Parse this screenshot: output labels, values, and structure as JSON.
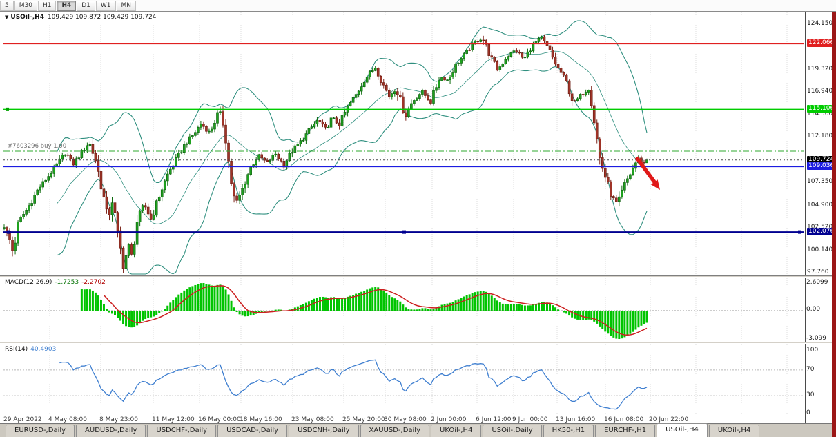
{
  "toolbar": {
    "periods": [
      "5",
      "M30",
      "H1",
      "H4",
      "D1",
      "W1",
      "MN"
    ],
    "active": "H4"
  },
  "chart": {
    "symbol_label": "USOil-,H4",
    "ohlc": "109.429 109.872 109.429 109.724",
    "buy_label": "#7603296 buy 1.00",
    "axis_labels": [
      {
        "text": "124.150",
        "price": 124.15,
        "style": "plain"
      },
      {
        "text": "119.320",
        "price": 119.32,
        "style": "plain"
      },
      {
        "text": "116.940",
        "price": 116.94,
        "style": "plain"
      },
      {
        "text": "114.560",
        "price": 114.56,
        "style": "plain"
      },
      {
        "text": "112.180",
        "price": 112.18,
        "style": "plain"
      },
      {
        "text": "107.350",
        "price": 107.35,
        "style": "plain"
      },
      {
        "text": "104.900",
        "price": 104.9,
        "style": "plain"
      },
      {
        "text": "102.520",
        "price": 102.52,
        "style": "plain"
      },
      {
        "text": "100.140",
        "price": 100.14,
        "style": "plain"
      },
      {
        "text": "97.760",
        "price": 97.76,
        "style": "plain"
      },
      {
        "text": "122.066",
        "price": 122.066,
        "style": "red"
      },
      {
        "text": "115.106",
        "price": 115.106,
        "style": "green"
      },
      {
        "text": "109.724",
        "price": 109.724,
        "style": "black"
      },
      {
        "text": "109.036",
        "price": 109.036,
        "style": "blue"
      },
      {
        "text": "102.076",
        "price": 102.076,
        "style": "navy"
      }
    ]
  },
  "macd": {
    "title": "MACD(12,26,9)",
    "value_main": "-1.7253",
    "value_signal": "-2.2702",
    "axis": [
      "2.6099",
      "0.00",
      "-3.099"
    ]
  },
  "rsi": {
    "title": "RSI(14)",
    "value": "40.4903",
    "axis": [
      "100",
      "70",
      "30",
      "0"
    ]
  },
  "time_axis": [
    "29 Apr 2022",
    "4 May 08:00",
    "8 May 23:00",
    "11 May 12:00",
    "16 May 00:00",
    "18 May 16:00",
    "23 May 08:00",
    "25 May 20:00",
    "30 May 08:00",
    "2 Jun 00:00",
    "6 Jun 12:00",
    "9 Jun 00:00",
    "13 Jun 16:00",
    "16 Jun 08:00",
    "20 Jun 22:00"
  ],
  "tabs": {
    "items": [
      "EURUSD-,Daily",
      "AUDUSD-,Daily",
      "USDCHF-,Daily",
      "USDCAD-,Daily",
      "USDCNH-,Daily",
      "XAUUSD-,Daily",
      "UKOil-,H4",
      "USOil-,Daily",
      "HK50-,H1",
      "EURCHF-,H1",
      "USOil-,H4",
      "UKOil-,H4"
    ],
    "active_index": 10
  },
  "chart_data": {
    "type": "candlestick",
    "symbol": "USOil-,H4",
    "current_ohlc": {
      "open": 109.429,
      "high": 109.872,
      "low": 109.429,
      "close": 109.724
    },
    "ylim": [
      97.76,
      124.15
    ],
    "y_axis_ticks": [
      124.15,
      119.32,
      116.94,
      114.56,
      112.18,
      107.35,
      104.9,
      102.52,
      100.14,
      97.76
    ],
    "x_labels": [
      "29 Apr 2022",
      "4 May 08:00",
      "8 May 23:00",
      "11 May 12:00",
      "16 May 00:00",
      "18 May 16:00",
      "23 May 08:00",
      "25 May 20:00",
      "30 May 08:00",
      "2 Jun 00:00",
      "6 Jun 12:00",
      "9 Jun 00:00",
      "13 Jun 16:00",
      "16 Jun 08:00",
      "20 Jun 22:00"
    ],
    "horizontal_lines": [
      {
        "price": 122.066,
        "color": "#e02020",
        "style": "solid"
      },
      {
        "price": 115.106,
        "color": "#00cc00",
        "style": "solid"
      },
      {
        "price": 110.66,
        "color": "#2faa2f",
        "style": "dashdot",
        "note": "open buy order line"
      },
      {
        "price": 109.724,
        "color": "#444444",
        "style": "dotted",
        "note": "current price"
      },
      {
        "price": 109.036,
        "color": "#1c1ce0",
        "style": "solid"
      },
      {
        "price": 102.076,
        "color": "#000090",
        "style": "solid"
      }
    ],
    "indicators": [
      {
        "name": "Bollinger Bands",
        "period": 20,
        "deviation": 2,
        "color": "#2f8f7f"
      },
      {
        "name": "MACD",
        "params": [
          12,
          26,
          9
        ],
        "current_values": [
          -1.7253,
          -2.2702
        ],
        "scale_range": [
          -3.099,
          2.6099
        ],
        "histogram_color": "#00c400",
        "signal_color": "#cc2020"
      },
      {
        "name": "RSI",
        "period": 14,
        "current_value": 40.4903,
        "levels": [
          30,
          70
        ],
        "line_color": "#3f7fd0"
      }
    ],
    "annotations": [
      {
        "type": "arrow",
        "color": "#e01818",
        "direction": "down-right",
        "near_price": 110.0
      },
      {
        "type": "order_line",
        "label": "#7603296 buy 1.00",
        "price": 110.66
      }
    ],
    "price_path_keyframes": [
      [
        6,
        102.8
      ],
      [
        14,
        101.2
      ],
      [
        19,
        99.9
      ],
      [
        27,
        103.2
      ],
      [
        40,
        104.6
      ],
      [
        55,
        106.6
      ],
      [
        70,
        108.0
      ],
      [
        84,
        109.4
      ],
      [
        95,
        110.6
      ],
      [
        105,
        109.2
      ],
      [
        117,
        110.4
      ],
      [
        129,
        111.6
      ],
      [
        139,
        109.6
      ],
      [
        149,
        106.2
      ],
      [
        156,
        103.4
      ],
      [
        163,
        105.6
      ],
      [
        171,
        101.6
      ],
      [
        179,
        98.5
      ],
      [
        186,
        100.6
      ],
      [
        191,
        99.4
      ],
      [
        199,
        103.4
      ],
      [
        209,
        105.0
      ],
      [
        219,
        103.4
      ],
      [
        231,
        106.0
      ],
      [
        244,
        108.4
      ],
      [
        257,
        110.0
      ],
      [
        268,
        111.4
      ],
      [
        280,
        112.4
      ],
      [
        291,
        113.6
      ],
      [
        304,
        112.6
      ],
      [
        317,
        114.9
      ],
      [
        325,
        113.2
      ],
      [
        334,
        107.8
      ],
      [
        341,
        104.9
      ],
      [
        351,
        106.6
      ],
      [
        362,
        108.8
      ],
      [
        374,
        110.2
      ],
      [
        387,
        109.4
      ],
      [
        399,
        110.4
      ],
      [
        411,
        109.2
      ],
      [
        424,
        110.8
      ],
      [
        437,
        111.8
      ],
      [
        449,
        113.0
      ],
      [
        461,
        114.0
      ],
      [
        471,
        112.9
      ],
      [
        481,
        114.2
      ],
      [
        491,
        113.5
      ],
      [
        504,
        115.4
      ],
      [
        517,
        116.8
      ],
      [
        529,
        118.4
      ],
      [
        544,
        119.6
      ],
      [
        554,
        117.9
      ],
      [
        564,
        116.5
      ],
      [
        574,
        117.4
      ],
      [
        587,
        114.4
      ],
      [
        597,
        115.9
      ],
      [
        611,
        117.0
      ],
      [
        624,
        115.9
      ],
      [
        637,
        118.6
      ],
      [
        649,
        118.2
      ],
      [
        661,
        119.9
      ],
      [
        674,
        121.0
      ],
      [
        687,
        122.2
      ],
      [
        699,
        122.7
      ],
      [
        711,
        120.6
      ],
      [
        721,
        119.3
      ],
      [
        734,
        120.7
      ],
      [
        747,
        121.4
      ],
      [
        759,
        120.4
      ],
      [
        771,
        121.9
      ],
      [
        784,
        122.7
      ],
      [
        794,
        121.6
      ],
      [
        807,
        119.6
      ],
      [
        819,
        118.3
      ],
      [
        831,
        115.7
      ],
      [
        844,
        116.8
      ],
      [
        854,
        117.4
      ],
      [
        861,
        113.8
      ],
      [
        869,
        109.8
      ],
      [
        877,
        107.9
      ],
      [
        887,
        105.7
      ],
      [
        895,
        105.0
      ],
      [
        904,
        107.0
      ],
      [
        914,
        108.4
      ],
      [
        924,
        109.9
      ],
      [
        932,
        109.4
      ],
      [
        940,
        109.72
      ]
    ]
  }
}
